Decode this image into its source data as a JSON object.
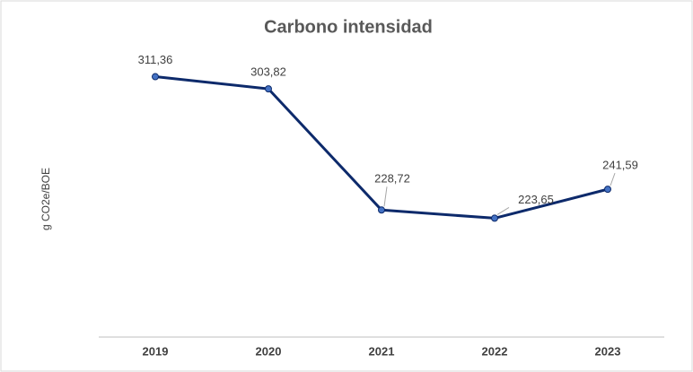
{
  "chart_data": {
    "type": "line",
    "title": "Carbono intensidad",
    "y_label": "g CO2e/BOE",
    "categories": [
      "2019",
      "2020",
      "2021",
      "2022",
      "2023"
    ],
    "series": [
      {
        "name": "Carbono intensidad",
        "color": "#0d2a6b",
        "values": [
          311.36,
          303.82,
          228.72,
          223.65,
          241.59
        ],
        "value_labels": [
          "311,36",
          "303,82",
          "228,72",
          "223,65",
          "241,59"
        ]
      }
    ],
    "ylim": [
      150,
      350
    ]
  }
}
